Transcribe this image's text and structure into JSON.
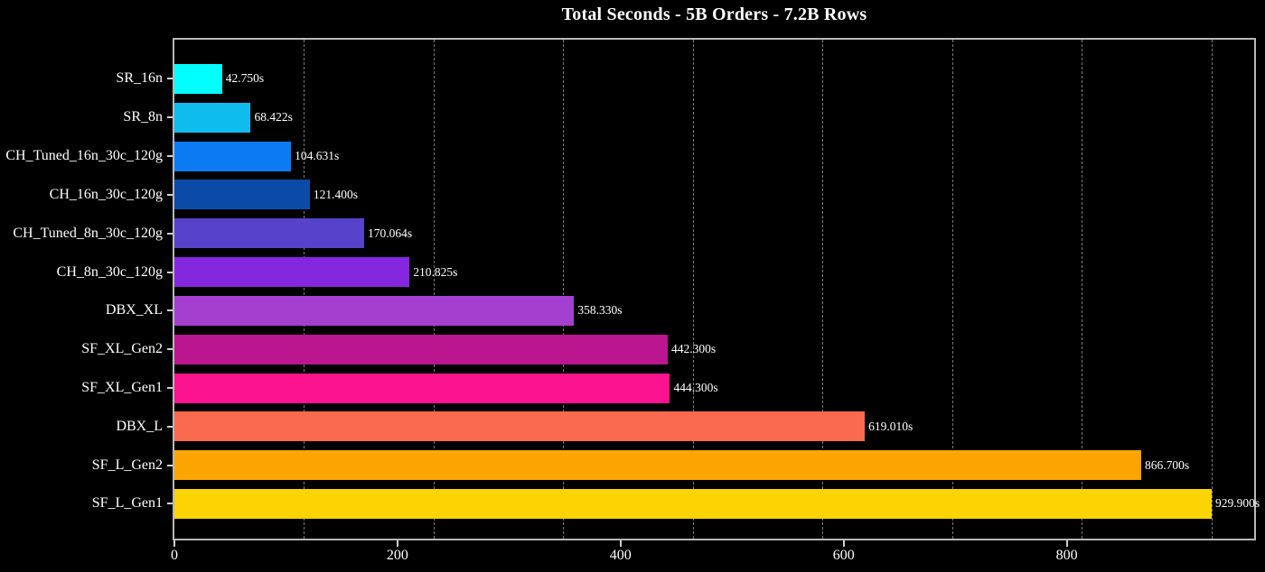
{
  "page": {
    "background": "#000000"
  },
  "chart_data": {
    "type": "bar",
    "orientation": "horizontal",
    "title": "Total Seconds - 5B Orders - 7.2B Rows",
    "categories": [
      "SR_16n",
      "SR_8n",
      "CH_Tuned_16n_30c_120g",
      "CH_16n_30c_120g",
      "CH_Tuned_8n_30c_120g",
      "CH_8n_30c_120g",
      "DBX_XL",
      "SF_XL_Gen2",
      "SF_XL_Gen1",
      "DBX_L",
      "SF_L_Gen2",
      "SF_L_Gen1"
    ],
    "values": [
      42.75,
      68.422,
      104.631,
      121.4,
      170.064,
      210.825,
      358.33,
      442.3,
      444.3,
      619.01,
      866.7,
      929.9
    ],
    "value_labels": [
      "42.750s",
      "68.422s",
      "104.631s",
      "121.400s",
      "170.064s",
      "210.825s",
      "358.330s",
      "442.300s",
      "444.300s",
      "619.010s",
      "866.700s",
      "929.900s"
    ],
    "bar_colors": [
      "#00FFFF",
      "#0FBCEE",
      "#0C7BF3",
      "#0C4AA8",
      "#5742CB",
      "#8527DF",
      "#A53FD0",
      "#BA1690",
      "#FC138F",
      "#FA6A4F",
      "#FCA400",
      "#FCD303"
    ],
    "xlabel": "",
    "ylabel": "",
    "xlim": [
      0,
      968
    ],
    "x_tick_labels": [
      "0",
      "200",
      "400",
      "600",
      "800"
    ],
    "x_tick_values": [
      0,
      200,
      400,
      600,
      800
    ],
    "gridline_values": [
      116.24,
      232.48,
      348.71,
      464.95,
      581.19,
      697.43,
      813.66,
      929.9
    ],
    "grid_style": "vertical-dashed",
    "legend_position": "none",
    "colors": {
      "background": "#000000",
      "text": "#FFFFFF",
      "grid": "#7A7A7A",
      "spine": "#B8B8B8",
      "tick": "#D0D0D0"
    }
  }
}
